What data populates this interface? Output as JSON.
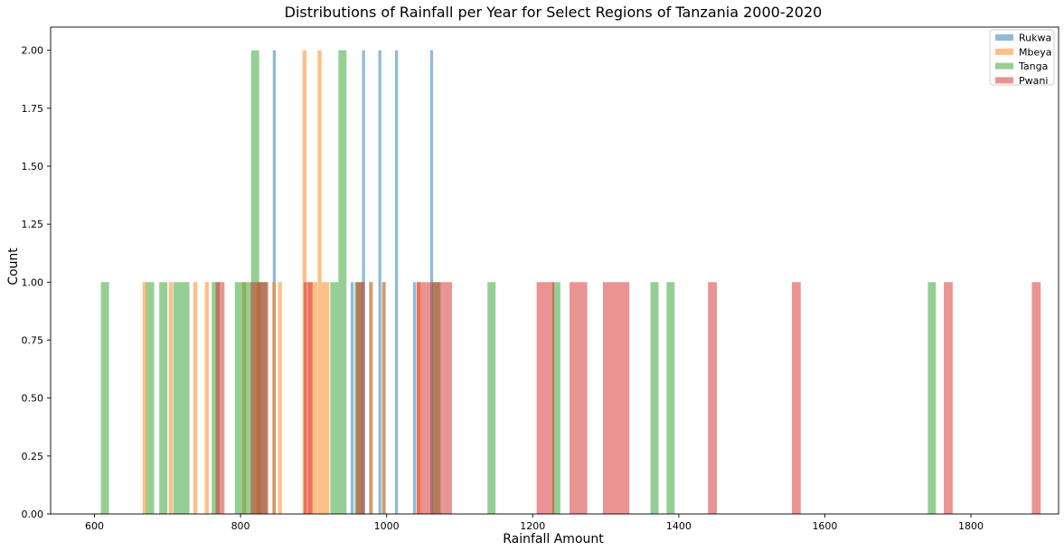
{
  "chart_data": {
    "type": "bar",
    "subtype": "overlaid-histogram",
    "title": "Distributions of Rainfall per Year for Select Regions of Tanzania 2000-2020",
    "xlabel": "Rainfall Amount",
    "ylabel": "Count",
    "xlim": [
      540,
      1920
    ],
    "ylim": [
      0,
      2.1
    ],
    "xticks": [
      600,
      800,
      1000,
      1200,
      1400,
      1600,
      1800
    ],
    "yticks": [
      0.0,
      0.25,
      0.5,
      0.75,
      1.0,
      1.25,
      1.5,
      1.75,
      2.0
    ],
    "ytick_labels": [
      "0.00",
      "0.25",
      "0.50",
      "0.75",
      "1.00",
      "1.25",
      "1.50",
      "1.75",
      "2.00"
    ],
    "grid": false,
    "legend_position": "top-right",
    "series": [
      {
        "name": "Rukwa",
        "color": "#1f77b4",
        "bins": [
          {
            "x0": 844.2,
            "x1": 848.3,
            "count": 2
          },
          {
            "x0": 950.8,
            "x1": 954.9,
            "count": 1
          },
          {
            "x0": 966.4,
            "x1": 970.5,
            "count": 2
          },
          {
            "x0": 976.2,
            "x1": 980.3,
            "count": 1
          },
          {
            "x0": 988.7,
            "x1": 992.8,
            "count": 2
          },
          {
            "x0": 994.5,
            "x1": 998.6,
            "count": 1
          },
          {
            "x0": 1011.5,
            "x1": 1015.6,
            "count": 2
          },
          {
            "x0": 1036.2,
            "x1": 1040.3,
            "count": 1
          },
          {
            "x0": 1059.6,
            "x1": 1063.7,
            "count": 2
          }
        ]
      },
      {
        "name": "Mbeya",
        "color": "#ff7f0e",
        "bins": [
          {
            "x0": 665.9,
            "x1": 671.3,
            "count": 1
          },
          {
            "x0": 701.7,
            "x1": 707.1,
            "count": 1
          },
          {
            "x0": 735.3,
            "x1": 740.7,
            "count": 1
          },
          {
            "x0": 751.1,
            "x1": 756.5,
            "count": 1
          },
          {
            "x0": 802.2,
            "x1": 807.6,
            "count": 1
          },
          {
            "x0": 822.4,
            "x1": 827.8,
            "count": 1
          },
          {
            "x0": 843.1,
            "x1": 848.5,
            "count": 1
          },
          {
            "x0": 851.3,
            "x1": 856.7,
            "count": 1
          },
          {
            "x0": 884.9,
            "x1": 890.3,
            "count": 2
          },
          {
            "x0": 892.4,
            "x1": 905.1,
            "count": 1
          },
          {
            "x0": 905.6,
            "x1": 911.0,
            "count": 2
          },
          {
            "x0": 911.0,
            "x1": 921.6,
            "count": 1
          },
          {
            "x0": 976.1,
            "x1": 981.5,
            "count": 1
          },
          {
            "x0": 993.4,
            "x1": 998.8,
            "count": 1
          },
          {
            "x0": 1041.2,
            "x1": 1046.6,
            "count": 1
          }
        ]
      },
      {
        "name": "Tanga",
        "color": "#2ca02c",
        "bins": [
          {
            "x0": 608.8,
            "x1": 619.9,
            "count": 1
          },
          {
            "x0": 670.7,
            "x1": 681.8,
            "count": 1
          },
          {
            "x0": 688.7,
            "x1": 699.8,
            "count": 1
          },
          {
            "x0": 707.8,
            "x1": 730.0,
            "count": 1
          },
          {
            "x0": 760.5,
            "x1": 771.6,
            "count": 1
          },
          {
            "x0": 792.2,
            "x1": 814.4,
            "count": 1
          },
          {
            "x0": 814.4,
            "x1": 825.5,
            "count": 2
          },
          {
            "x0": 825.5,
            "x1": 836.6,
            "count": 1
          },
          {
            "x0": 922.9,
            "x1": 934.0,
            "count": 1
          },
          {
            "x0": 934.0,
            "x1": 945.1,
            "count": 2
          },
          {
            "x0": 956.2,
            "x1": 967.3,
            "count": 1
          },
          {
            "x0": 1062.7,
            "x1": 1073.8,
            "count": 1
          },
          {
            "x0": 1138.1,
            "x1": 1149.2,
            "count": 1
          },
          {
            "x0": 1226.8,
            "x1": 1237.9,
            "count": 1
          },
          {
            "x0": 1361.2,
            "x1": 1372.3,
            "count": 1
          },
          {
            "x0": 1383.3,
            "x1": 1394.4,
            "count": 1
          },
          {
            "x0": 1741.0,
            "x1": 1752.1,
            "count": 1
          }
        ]
      },
      {
        "name": "Pwani",
        "color": "#d62728",
        "bins": [
          {
            "x0": 765.9,
            "x1": 778.0,
            "count": 1
          },
          {
            "x0": 813.8,
            "x1": 838.0,
            "count": 1
          },
          {
            "x0": 886.4,
            "x1": 898.5,
            "count": 1
          },
          {
            "x0": 958.1,
            "x1": 970.2,
            "count": 1
          },
          {
            "x0": 1041.1,
            "x1": 1077.4,
            "count": 1
          },
          {
            "x0": 1077.4,
            "x1": 1089.5,
            "count": 1
          },
          {
            "x0": 1205.4,
            "x1": 1229.6,
            "count": 1
          },
          {
            "x0": 1250.5,
            "x1": 1274.7,
            "count": 1
          },
          {
            "x0": 1296.1,
            "x1": 1332.4,
            "count": 1
          },
          {
            "x0": 1440.1,
            "x1": 1452.2,
            "count": 1
          },
          {
            "x0": 1554.9,
            "x1": 1567.0,
            "count": 1
          },
          {
            "x0": 1762.9,
            "x1": 1775.0,
            "count": 1
          },
          {
            "x0": 1883.4,
            "x1": 1895.5,
            "count": 1
          }
        ]
      }
    ]
  }
}
